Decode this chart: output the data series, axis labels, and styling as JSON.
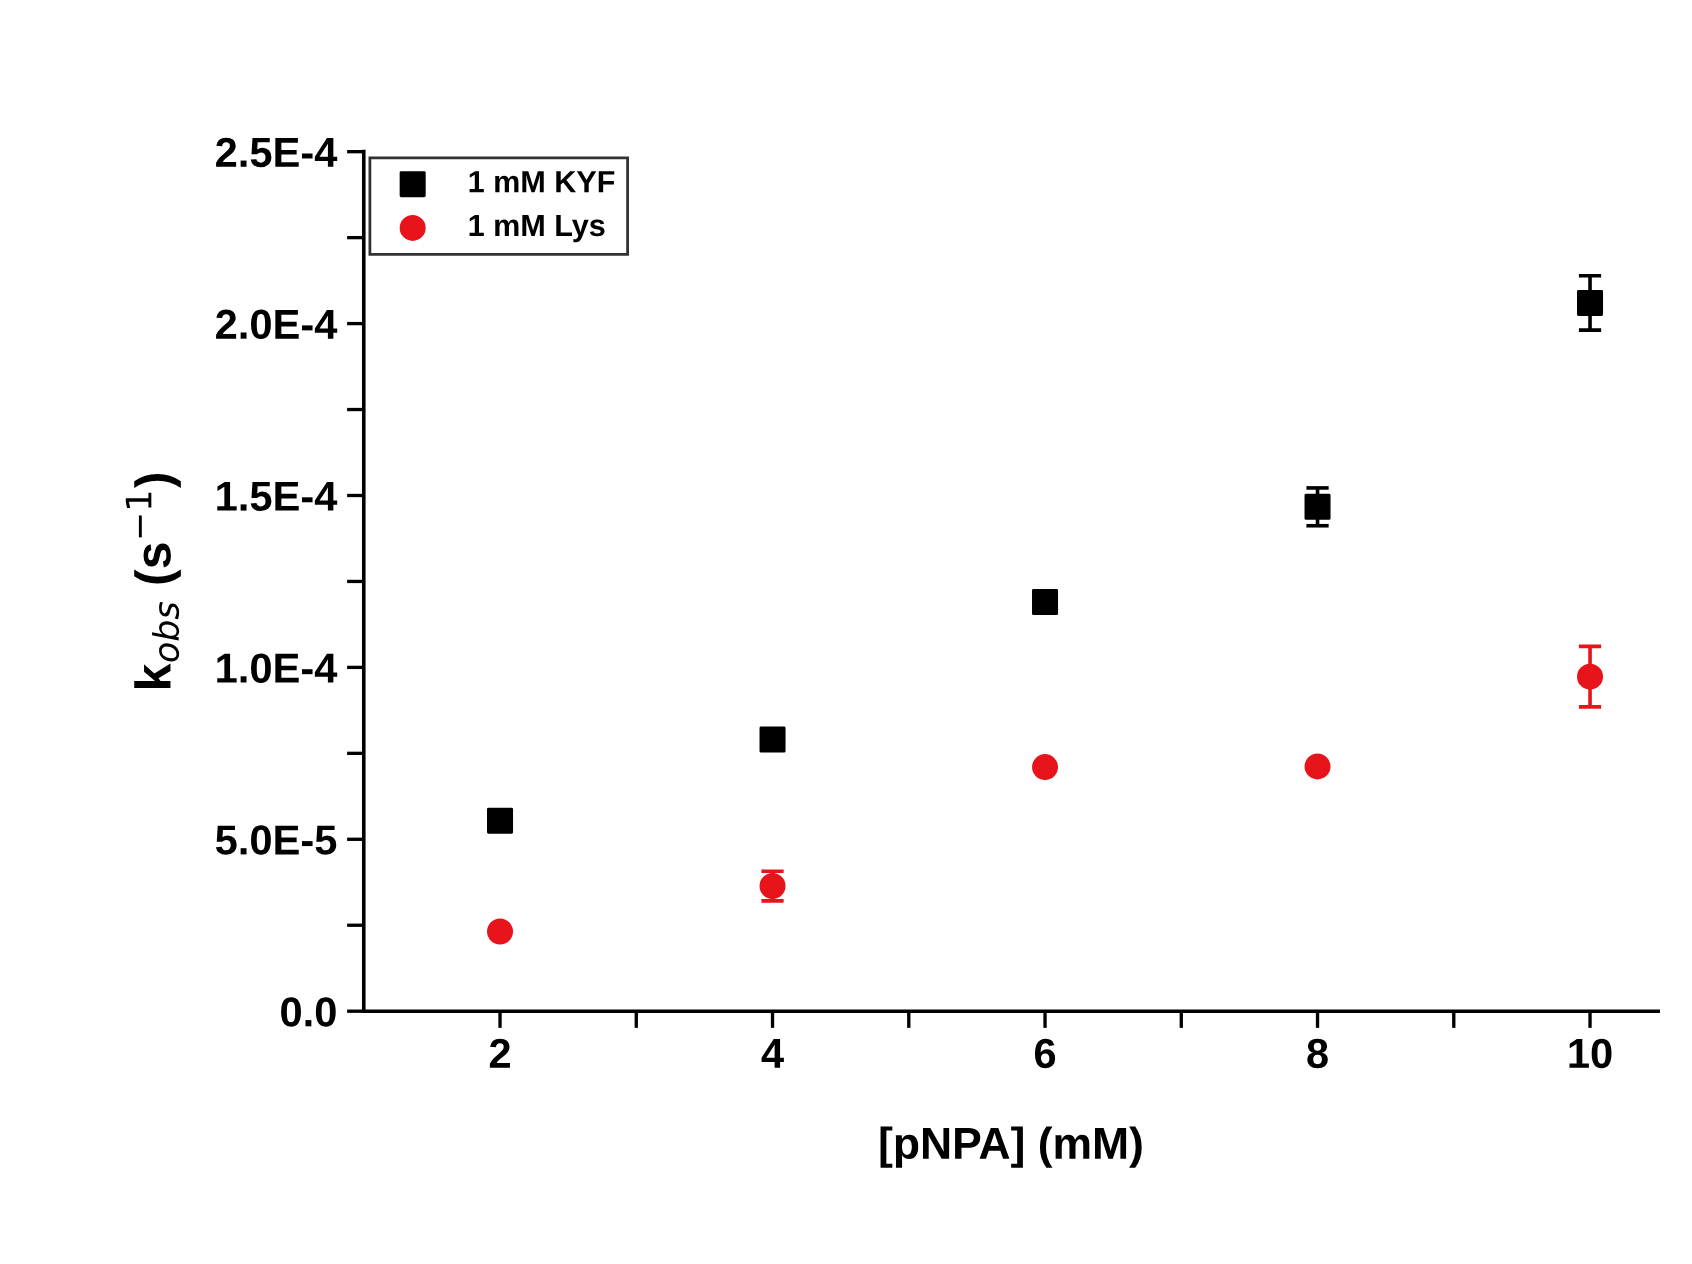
{
  "chart_data": {
    "type": "scatter",
    "xlabel": "[pNPA] (mM)",
    "ylabel": "k$_{obs}$ (s$^{−1}$)",
    "x": [
      2,
      4,
      6,
      8,
      10
    ],
    "series": [
      {
        "name": "1 mM KYF",
        "color": "#000000",
        "marker": "square",
        "values": [
          5.54e-05,
          7.9e-05,
          0.000119,
          0.0001467,
          0.000206
        ],
        "errors": [
          null,
          null,
          null,
          5.5e-06,
          7.9e-06
        ]
      },
      {
        "name": "1 mM Lys",
        "color": "#e8141b",
        "marker": "circle",
        "values": [
          2.32e-05,
          3.64e-05,
          7.1e-05,
          7.12e-05,
          9.73e-05
        ],
        "errors": [
          null,
          4.3e-06,
          null,
          null,
          8.8e-06
        ]
      }
    ],
    "xlim": [
      1,
      10.5
    ],
    "xticks": [
      2,
      {
        "value": 3,
        "label": null
      },
      4,
      {
        "value": 5,
        "label": null
      },
      6,
      {
        "value": 7,
        "label": null
      },
      8,
      {
        "value": 9,
        "label": null
      },
      10
    ],
    "ylim": [
      0,
      0.00025
    ],
    "yticks": [
      {
        "value": 0,
        "label": "0.0"
      },
      {
        "value": 2.5e-05,
        "label": null
      },
      {
        "value": 5e-05,
        "label": "5.0E-5"
      },
      {
        "value": 7.5e-05,
        "label": null
      },
      {
        "value": 0.0001,
        "label": "1.0E-4"
      },
      {
        "value": 0.000125,
        "label": null
      },
      {
        "value": 0.00015,
        "label": "1.5E-4"
      },
      {
        "value": 0.000175,
        "label": null
      },
      {
        "value": 0.0002,
        "label": "2.0E-4"
      },
      {
        "value": 0.000225,
        "label": null
      },
      {
        "value": 0.00025,
        "label": "2.5E-4"
      }
    ],
    "grid": false,
    "legend": "top left"
  }
}
